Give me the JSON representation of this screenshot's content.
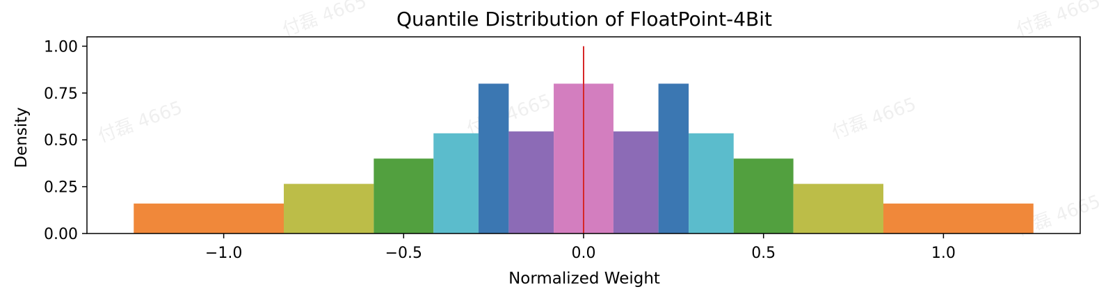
{
  "chart_data": {
    "type": "bar",
    "title": "Quantile Distribution of FloatPoint-4Bit",
    "xlabel": "Normalized Weight",
    "ylabel": "Density",
    "xlim": [
      -1.38,
      1.38
    ],
    "ylim": [
      0,
      1.05
    ],
    "xticks": [
      -1.0,
      -0.5,
      0.0,
      0.5,
      1.0
    ],
    "xtick_labels": [
      "−1.0",
      "−0.5",
      "0.0",
      "0.5",
      "1.0"
    ],
    "yticks": [
      0.0,
      0.25,
      0.5,
      0.75,
      1.0
    ],
    "ytick_labels": [
      "0.00",
      "0.25",
      "0.50",
      "0.75",
      "1.00"
    ],
    "grid": false,
    "bins": [
      {
        "x0": -1.25,
        "x1": -0.833,
        "density": 0.16,
        "color": "#f0883a"
      },
      {
        "x0": -0.833,
        "x1": -0.583,
        "density": 0.265,
        "color": "#bcbd48"
      },
      {
        "x0": -0.583,
        "x1": -0.417,
        "density": 0.4,
        "color": "#52a03f"
      },
      {
        "x0": -0.417,
        "x1": -0.292,
        "density": 0.535,
        "color": "#5bbccc"
      },
      {
        "x0": -0.292,
        "x1": -0.208,
        "density": 0.8,
        "color": "#3b77b2"
      },
      {
        "x0": -0.208,
        "x1": -0.083,
        "density": 0.545,
        "color": "#8c6bb6"
      },
      {
        "x0": -0.083,
        "x1": 0.083,
        "density": 0.8,
        "color": "#d37ebf"
      },
      {
        "x0": 0.083,
        "x1": 0.208,
        "density": 0.545,
        "color": "#8c6bb6"
      },
      {
        "x0": 0.208,
        "x1": 0.292,
        "density": 0.8,
        "color": "#3b77b2"
      },
      {
        "x0": 0.292,
        "x1": 0.417,
        "density": 0.535,
        "color": "#5bbccc"
      },
      {
        "x0": 0.417,
        "x1": 0.583,
        "density": 0.4,
        "color": "#52a03f"
      },
      {
        "x0": 0.583,
        "x1": 0.833,
        "density": 0.265,
        "color": "#bcbd48"
      },
      {
        "x0": 0.833,
        "x1": 1.25,
        "density": 0.16,
        "color": "#f0883a"
      }
    ],
    "vline": {
      "x": 0.0,
      "y0": 0.0,
      "y1": 1.0,
      "color": "#d62728"
    }
  },
  "watermark": {
    "text": "付磊 4665"
  }
}
